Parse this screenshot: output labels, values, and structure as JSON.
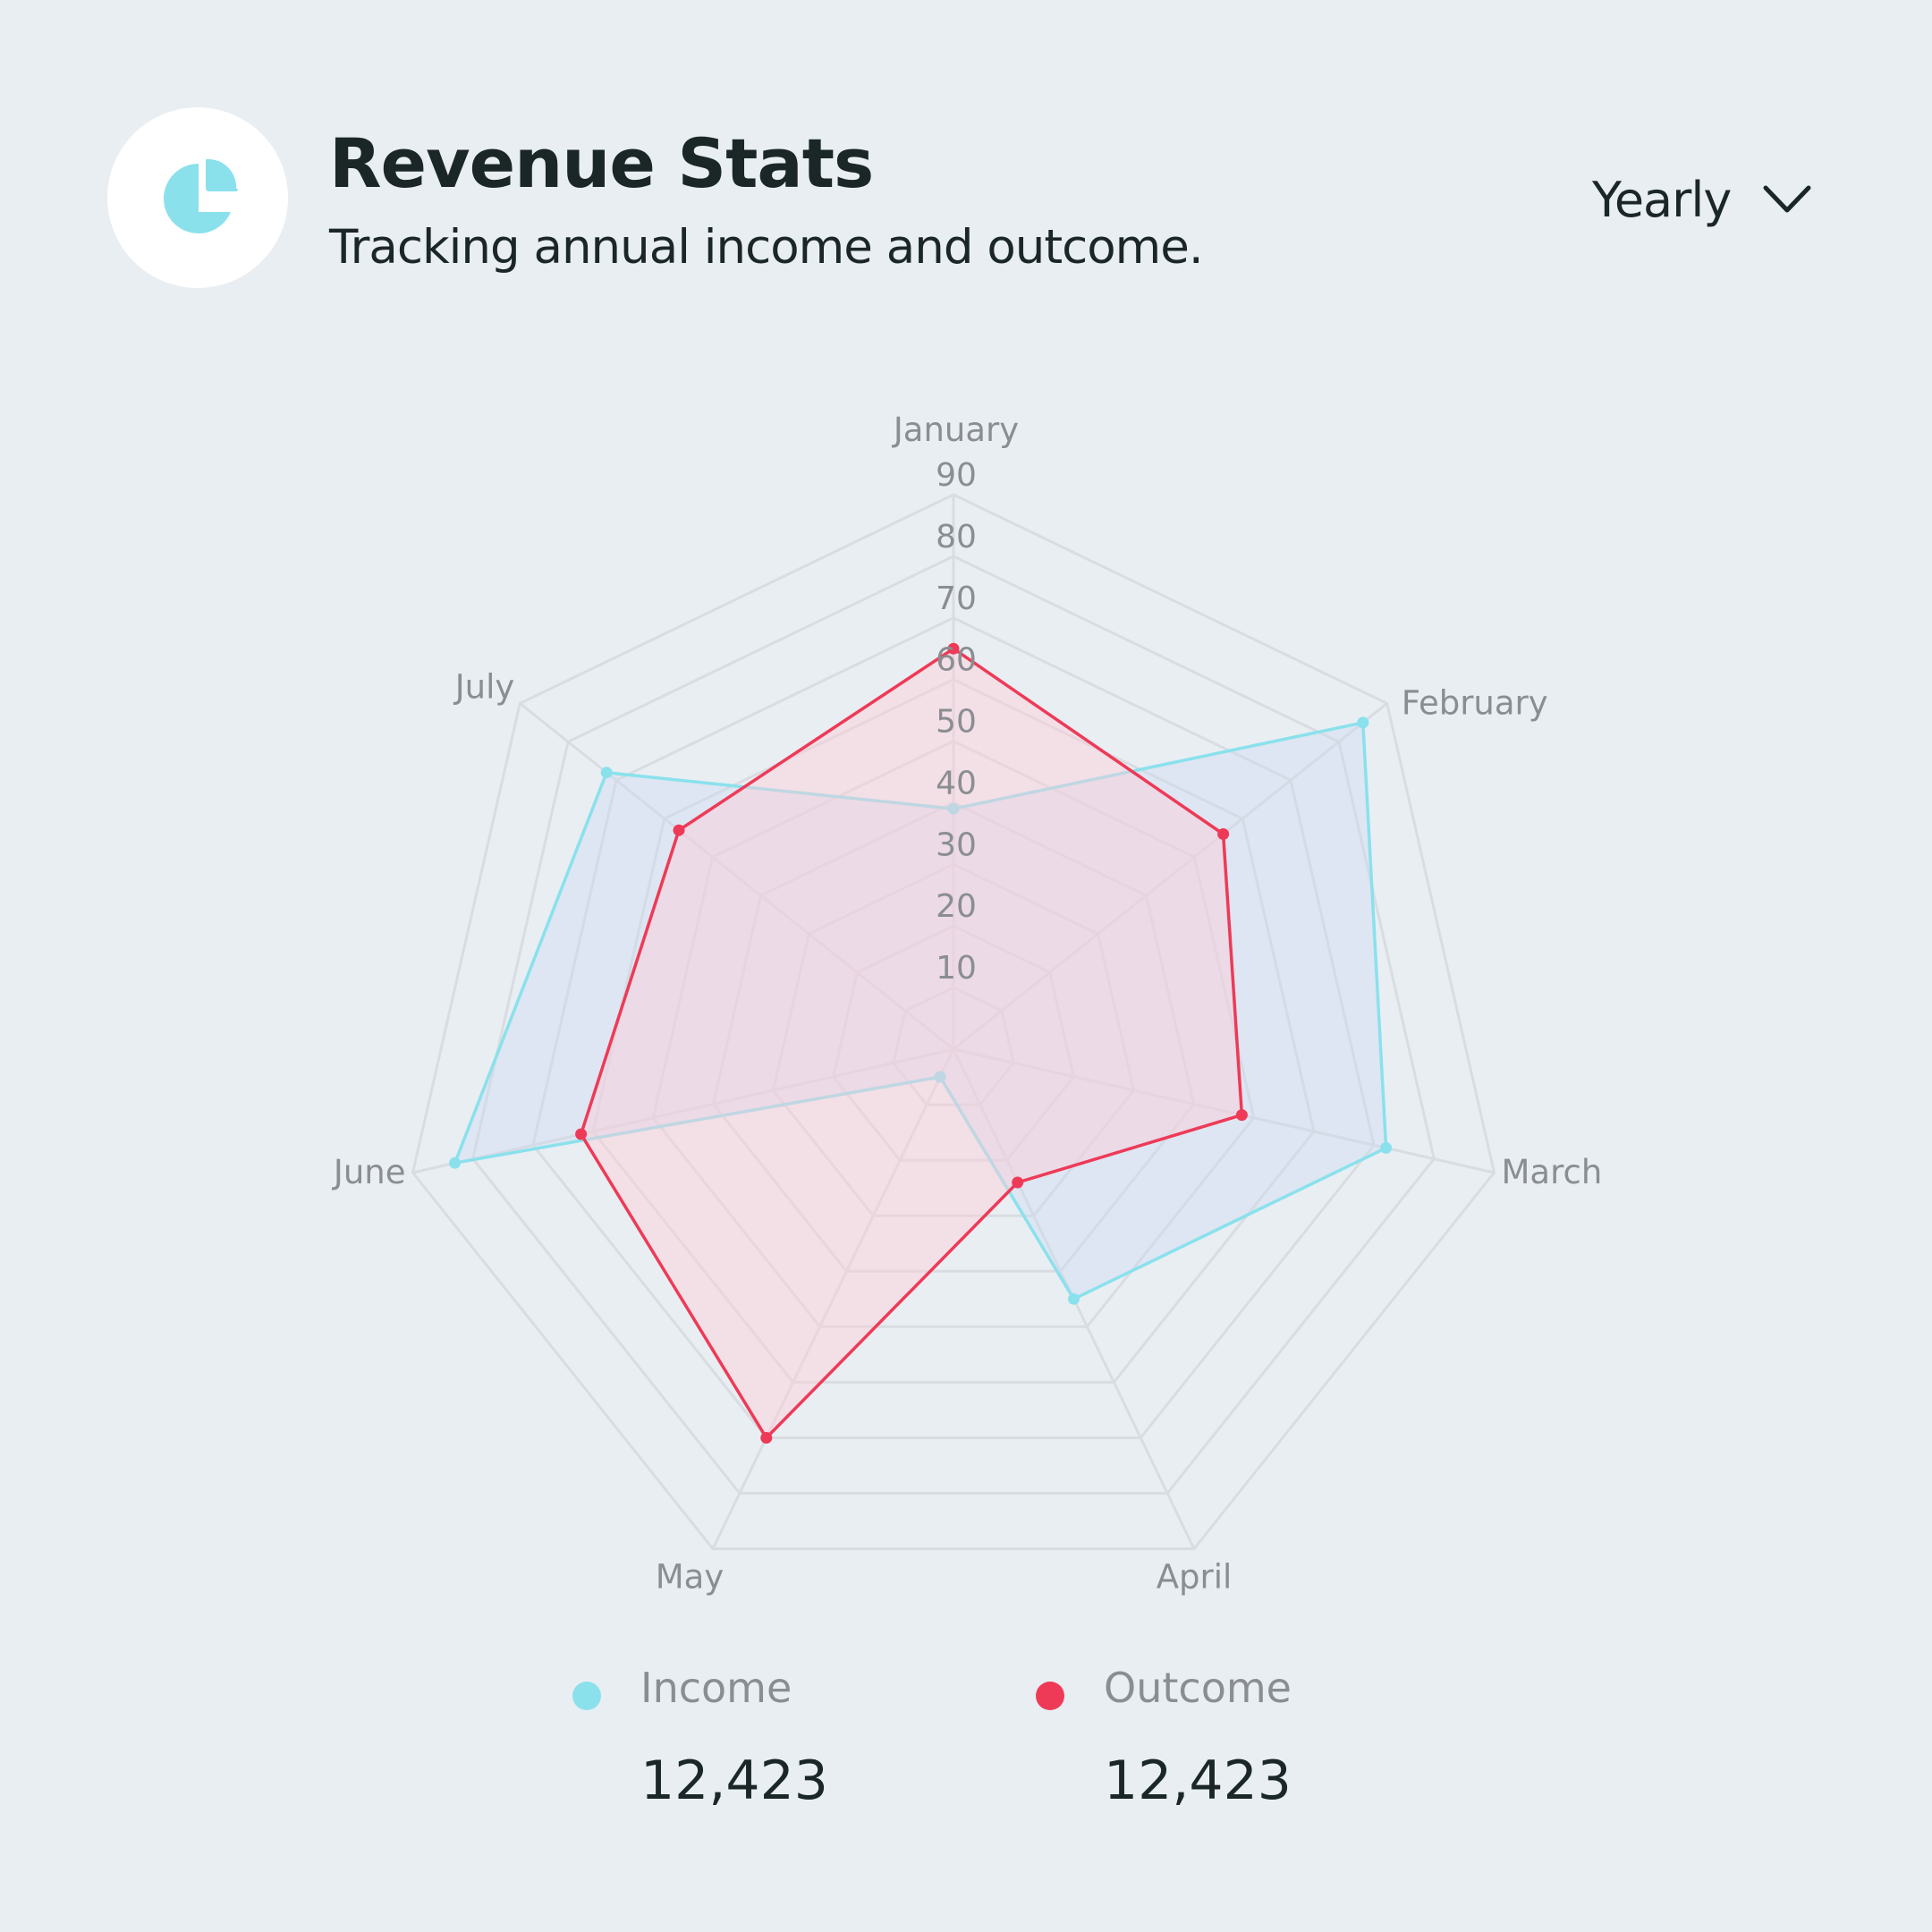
{
  "header": {
    "title": "Revenue Stats",
    "subtitle": "Tracking annual income and outcome.",
    "icon": "pie-chart-icon"
  },
  "period_select": {
    "selected": "Yearly",
    "icon": "chevron-down-icon"
  },
  "colors": {
    "background": "#e9eef3",
    "income": "#8ae1ec",
    "outcome": "#ee3a57",
    "grid": "#d9dde1",
    "label": "#8a8e92"
  },
  "chart_data": {
    "type": "radar",
    "title": "",
    "axes": [
      "January",
      "February",
      "March",
      "April",
      "May",
      "June",
      "July"
    ],
    "rlim": [
      0,
      90
    ],
    "rticks": [
      10,
      20,
      30,
      40,
      50,
      60,
      70,
      80,
      90
    ],
    "rtick_labels": [
      "10",
      "20",
      "30",
      "40",
      "50",
      "60",
      "70",
      "80",
      "90"
    ],
    "grid": true,
    "series": [
      {
        "name": "Income",
        "values": [
          39,
          85,
          72,
          45,
          5,
          83,
          72
        ]
      },
      {
        "name": "Outcome",
        "values": [
          65,
          56,
          48,
          24,
          70,
          62,
          57
        ]
      }
    ]
  },
  "legend": [
    {
      "name": "Income",
      "value": "12,423"
    },
    {
      "name": "Outcome",
      "value": "12,423"
    }
  ]
}
